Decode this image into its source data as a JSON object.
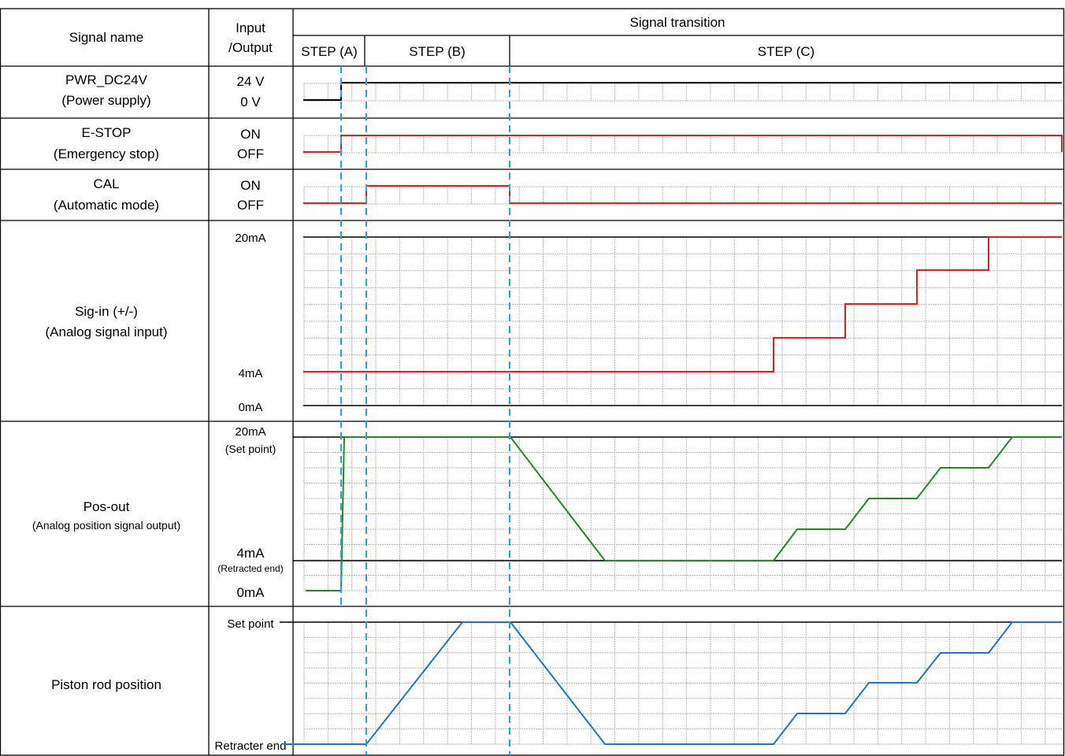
{
  "header": {
    "signal_name": "Signal name",
    "io_line1": "Input",
    "io_line2": "/Output",
    "transition": "Signal transition",
    "steps": [
      "STEP (A)",
      "STEP (B)",
      "STEP (C)"
    ]
  },
  "rows": [
    {
      "name1": "PWR_DC24V",
      "name2": "(Power supply)",
      "high": "24 V",
      "low": "0 V"
    },
    {
      "name1": "E-STOP",
      "name2": "(Emergency stop)",
      "high": "ON",
      "low": "OFF"
    },
    {
      "name1": "CAL",
      "name2": "(Automatic mode)",
      "high": "ON",
      "low": "OFF"
    },
    {
      "name1": "Sig-in (+/-)",
      "name2": "(Analog signal input)",
      "high": "20mA",
      "mid": "4mA",
      "low": "0mA"
    },
    {
      "name1": "Pos-out",
      "name2": "(Analog position signal output)",
      "high": "20mA",
      "high_note": "(Set point)",
      "mid": "4mA",
      "mid_note": "(Retracted end)",
      "low": "0mA"
    },
    {
      "name1": "Piston rod position",
      "high": "Set point",
      "low": "Retracter end"
    }
  ],
  "colors": {
    "power": "#000000",
    "digital": "#e02020",
    "pos_out": "#228b22",
    "piston": "#1f77c4",
    "step_divider": "#1ca8d8",
    "grid": "#b8b8b8"
  }
}
